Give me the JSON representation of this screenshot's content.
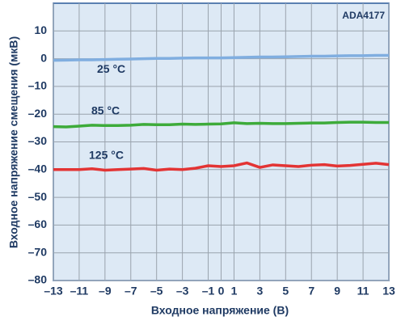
{
  "chart_data": {
    "type": "line",
    "x_label": "Входное напряжение (В)",
    "y_label": "Входное напряжение смещения (мкВ)",
    "annotation": "ADA4177",
    "x": [
      -13,
      -12,
      -11,
      -10,
      -9,
      -8,
      -7,
      -6,
      -5,
      -4,
      -3,
      -2,
      -1,
      0,
      1,
      2,
      3,
      4,
      5,
      6,
      7,
      8,
      9,
      10,
      11,
      12,
      13
    ],
    "series": [
      {
        "name": "25 °C",
        "color": "#80aee0",
        "values": [
          -0.6,
          -0.5,
          -0.4,
          -0.4,
          -0.3,
          -0.2,
          -0.1,
          0,
          0.1,
          0.1,
          0.2,
          0.3,
          0.3,
          0.3,
          0.4,
          0.5,
          0.6,
          0.6,
          0.7,
          0.8,
          0.9,
          0.9,
          1,
          1.1,
          1.1,
          1.2,
          1.2
        ]
      },
      {
        "name": "85 °C",
        "color": "#3dab3a",
        "values": [
          -24.5,
          -24.6,
          -24.3,
          -24,
          -24.1,
          -24.1,
          -24,
          -23.7,
          -23.8,
          -23.8,
          -23.6,
          -23.7,
          -23.6,
          -23.5,
          -23.1,
          -23.4,
          -23.3,
          -23.4,
          -23.4,
          -23.3,
          -23.2,
          -23.2,
          -23,
          -22.9,
          -22.9,
          -23,
          -23
        ]
      },
      {
        "name": "125 °C",
        "color": "#e33434",
        "values": [
          -40,
          -40,
          -40,
          -39.7,
          -40.2,
          -40,
          -39.8,
          -39.6,
          -40.2,
          -39.8,
          -40,
          -39.5,
          -38.6,
          -38.9,
          -38.6,
          -37.6,
          -39.2,
          -38.3,
          -38.6,
          -38.9,
          -38.4,
          -38.2,
          -38.7,
          -38.5,
          -38.1,
          -37.7,
          -38.2
        ]
      }
    ],
    "xlim": [
      -13,
      13
    ],
    "xticks": [
      {
        "value": -13,
        "label": "–13"
      },
      {
        "value": -11,
        "label": "–11"
      },
      {
        "value": -9,
        "label": "–9"
      },
      {
        "value": -7,
        "label": "–7"
      },
      {
        "value": -5,
        "label": "–5"
      },
      {
        "value": -3,
        "label": "–3"
      },
      {
        "value": -1,
        "label": "–1"
      },
      0,
      1,
      3,
      5,
      7,
      9,
      11,
      13
    ],
    "ylim": [
      -80,
      20
    ],
    "yticks": [
      10,
      0,
      {
        "value": -10,
        "label": "–10"
      },
      {
        "value": -20,
        "label": "–20"
      },
      {
        "value": -30,
        "label": "–30"
      },
      {
        "value": -40,
        "label": "–40"
      },
      {
        "value": -50,
        "label": "–50"
      },
      {
        "value": -60,
        "label": "–60"
      },
      {
        "value": -70,
        "label": "–70"
      },
      {
        "value": -80,
        "label": "–80"
      }
    ],
    "grid": true
  }
}
